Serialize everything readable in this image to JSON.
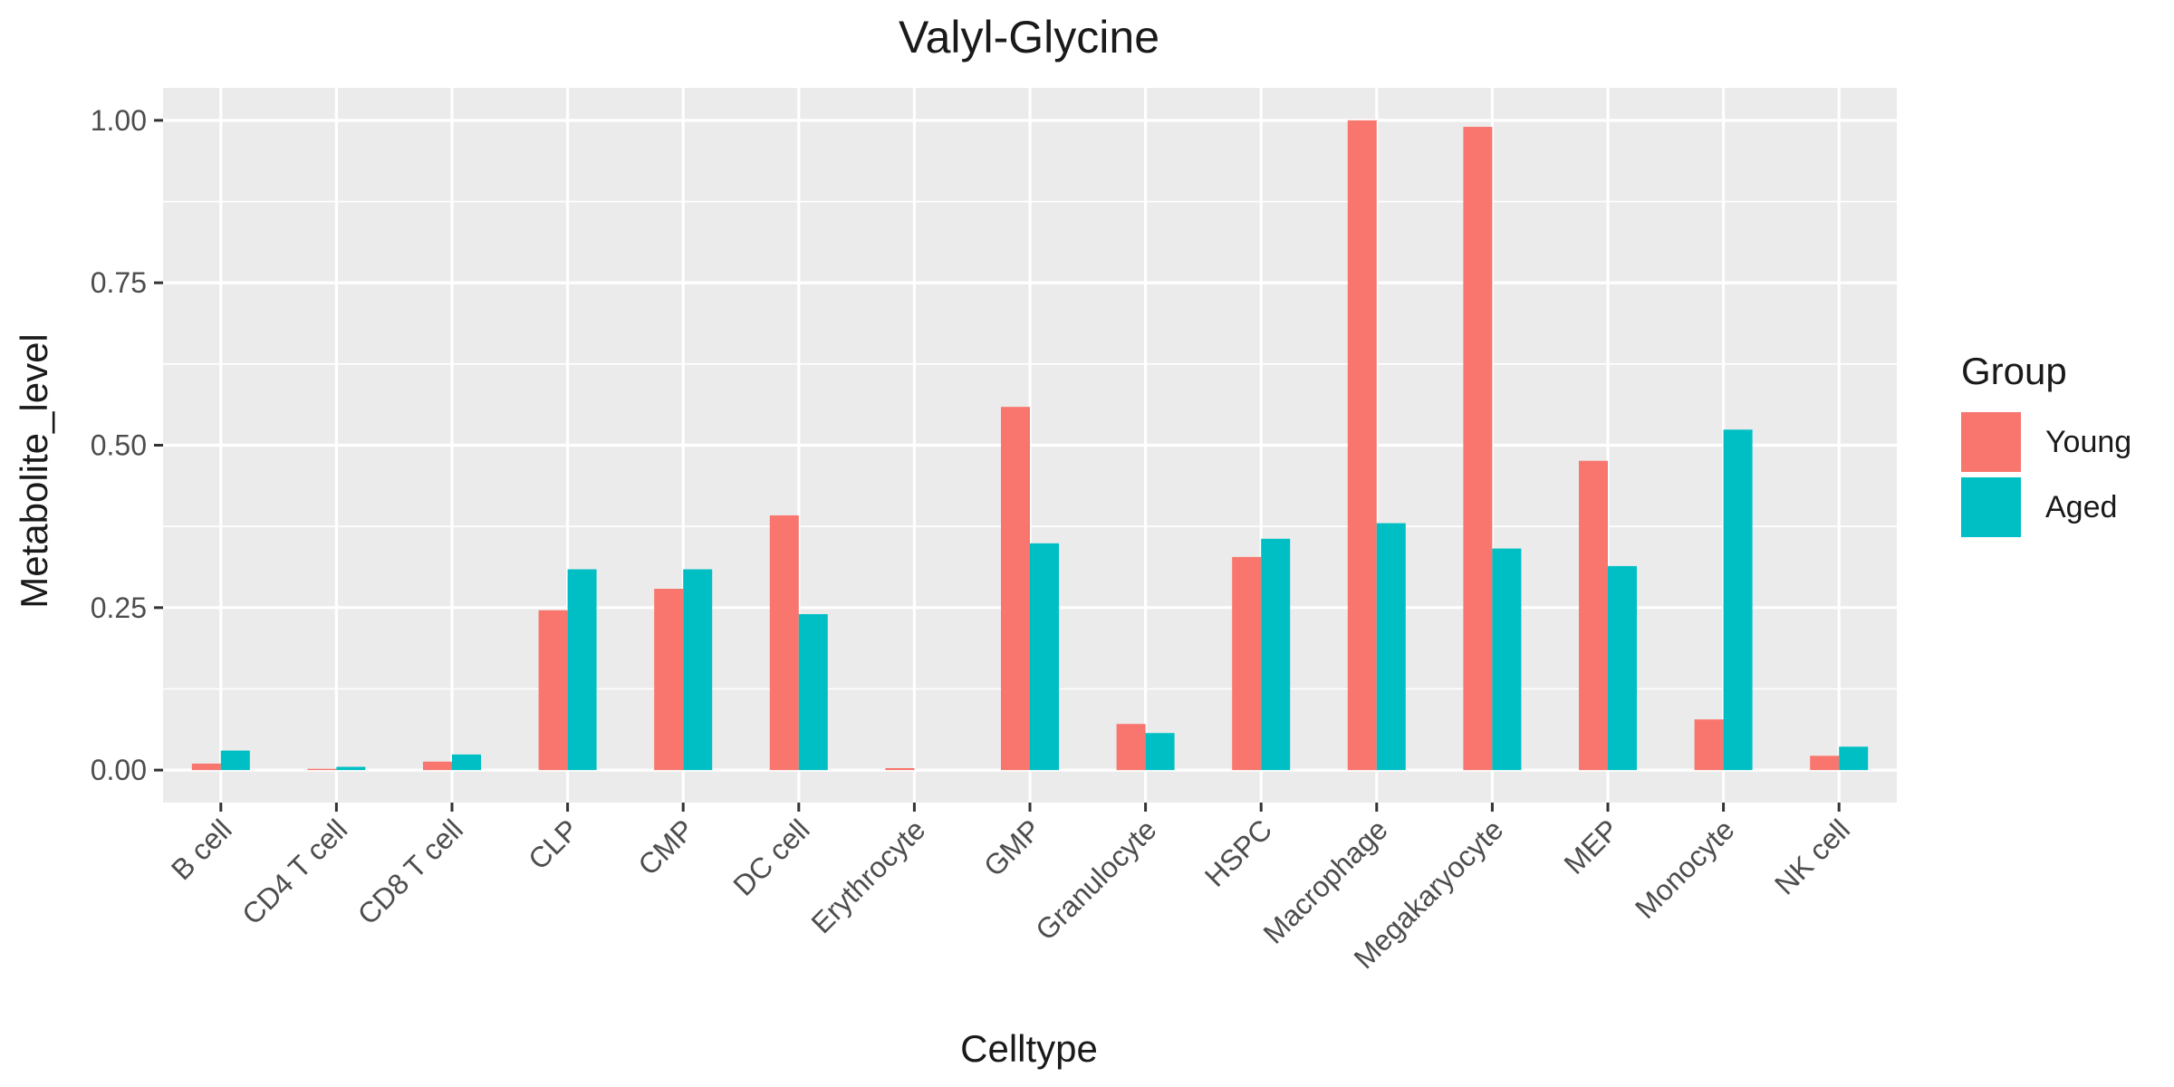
{
  "chart_data": {
    "type": "bar",
    "title": "Valyl-Glycine",
    "xlabel": "Celltype",
    "ylabel": "Metabolite_level",
    "categories": [
      "B cell",
      "CD4 T cell",
      "CD8 T cell",
      "CLP",
      "CMP",
      "DC cell",
      "Erythrocyte",
      "GMP",
      "Granulocyte",
      "HSPC",
      "Macrophage",
      "Megakaryocyte",
      "MEP",
      "Monocyte",
      "NK cell"
    ],
    "series": [
      {
        "name": "Young",
        "color": "#F8766D",
        "values": [
          0.01,
          0.002,
          0.013,
          0.246,
          0.279,
          0.392,
          0.003,
          0.559,
          0.071,
          0.328,
          1.0,
          0.99,
          0.476,
          0.078,
          0.022
        ]
      },
      {
        "name": "Aged",
        "color": "#00BFC4",
        "values": [
          0.03,
          0.005,
          0.024,
          0.309,
          0.309,
          0.24,
          0.0,
          0.349,
          0.057,
          0.356,
          0.38,
          0.341,
          0.314,
          0.524,
          0.036
        ]
      }
    ],
    "yticks": [
      "0.00",
      "0.25",
      "0.50",
      "0.75",
      "1.00"
    ],
    "ylim": [
      -0.05,
      1.05
    ],
    "grid": true,
    "legend": {
      "title": "Group",
      "position": "right"
    }
  }
}
